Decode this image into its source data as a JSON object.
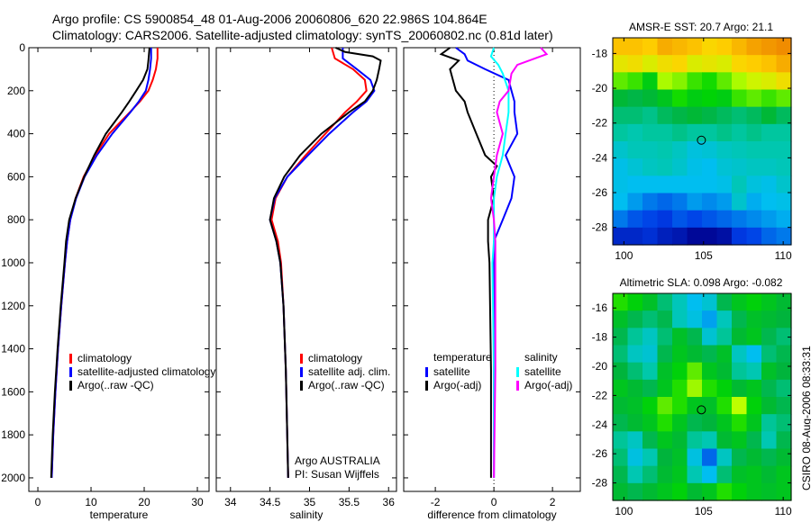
{
  "title_line1": "Argo profile: CS 5900854_48 01-Aug-2006 20060806_620 22.986S 104.864E",
  "title_line2": "Climatology: CARS2006. Satellite-adjusted climatology: synTS_20060802.nc (0.81d later)",
  "side_stamp": "CSIRO 08-Aug-2006 08:33:31",
  "chart_data": [
    {
      "type": "line",
      "id": "temperature",
      "xlabel": "temperature",
      "ylabel": "",
      "xlim": [
        -1.7,
        32.2
      ],
      "ylim": [
        2063,
        0
      ],
      "xticks": [
        "0",
        "10",
        "20",
        "30"
      ],
      "xtick_values": [
        0,
        10,
        20,
        30
      ],
      "yticks": [
        "0",
        "200",
        "400",
        "600",
        "800",
        "1000",
        "1200",
        "1400",
        "1600",
        "1800",
        "2000"
      ],
      "ytick_values": [
        0,
        200,
        400,
        600,
        800,
        1000,
        1200,
        1400,
        1600,
        1800,
        2000
      ],
      "legend": [
        "climatology",
        "satellite-adjusted climatology",
        "Argo(..raw -QC)"
      ],
      "series": [
        {
          "name": "climatology",
          "color": "#ff0000",
          "depth": [
            0,
            50,
            100,
            150,
            200,
            250,
            300,
            400,
            500,
            600,
            700,
            800,
            900,
            1000,
            1200,
            1400,
            1600,
            1800,
            2000
          ],
          "values": [
            22.5,
            22.5,
            22.2,
            21.6,
            20.8,
            19.2,
            17.3,
            13.4,
            10.8,
            8.6,
            7.1,
            6.1,
            5.5,
            5.1,
            4.4,
            3.8,
            3.3,
            2.9,
            2.6
          ]
        },
        {
          "name": "satellite-adjusted climatology",
          "color": "#0000ff",
          "depth": [
            0,
            50,
            100,
            150,
            200,
            250,
            300,
            400,
            500,
            600,
            700,
            800,
            900,
            1000,
            1200,
            1400,
            1600,
            1800,
            2000
          ],
          "values": [
            21.3,
            21.3,
            21.1,
            20.8,
            20.3,
            19.0,
            17.4,
            14.0,
            11.1,
            8.8,
            7.2,
            6.1,
            5.5,
            5.1,
            4.4,
            3.8,
            3.3,
            2.9,
            2.6
          ]
        },
        {
          "name": "Argo(..raw -QC)",
          "color": "#000000",
          "depth": [
            0,
            30,
            60,
            100,
            150,
            200,
            250,
            300,
            350,
            400,
            500,
            600,
            700,
            800,
            900,
            1000,
            1200,
            1400,
            1600,
            1800,
            2000
          ],
          "values": [
            21.0,
            20.9,
            20.8,
            20.6,
            19.8,
            18.5,
            17.2,
            15.8,
            14.3,
            12.8,
            10.6,
            8.7,
            7.1,
            5.9,
            5.3,
            5.0,
            4.3,
            3.7,
            3.2,
            2.8,
            2.5
          ]
        }
      ]
    },
    {
      "type": "line",
      "id": "salinity",
      "xlabel": "salinity",
      "xlim": [
        33.82,
        36.1
      ],
      "ylim": [
        2063,
        0
      ],
      "xticks": [
        "34",
        "34.5",
        "35",
        "35.5",
        "36"
      ],
      "xtick_values": [
        34,
        34.5,
        35,
        35.5,
        36
      ],
      "legend": [
        "climatology",
        "satellite adj. clim.",
        "Argo(..raw -QC)"
      ],
      "annotation": [
        "Argo AUSTRALIA",
        "PI: Susan Wijffels"
      ],
      "series": [
        {
          "name": "climatology",
          "color": "#ff0000",
          "depth": [
            0,
            50,
            100,
            150,
            200,
            250,
            300,
            400,
            500,
            600,
            700,
            800,
            900,
            1000,
            1200,
            1500,
            2000
          ],
          "values": [
            35.28,
            35.32,
            35.55,
            35.7,
            35.72,
            35.6,
            35.45,
            35.2,
            34.95,
            34.72,
            34.57,
            34.52,
            34.6,
            34.64,
            34.67,
            34.7,
            34.73
          ]
        },
        {
          "name": "satellite adj. clim.",
          "color": "#0000ff",
          "depth": [
            0,
            50,
            100,
            150,
            200,
            250,
            300,
            400,
            500,
            600,
            700,
            800,
            900,
            1000,
            1200,
            1500,
            2000
          ],
          "values": [
            35.42,
            35.42,
            35.6,
            35.77,
            35.82,
            35.72,
            35.55,
            35.25,
            34.98,
            34.72,
            34.56,
            34.5,
            34.58,
            34.63,
            34.67,
            34.7,
            34.73
          ]
        },
        {
          "name": "Argo(..raw -QC)",
          "color": "#000000",
          "depth": [
            0,
            20,
            40,
            60,
            100,
            150,
            200,
            250,
            300,
            400,
            500,
            600,
            700,
            800,
            900,
            1000,
            1200,
            1500,
            2000
          ],
          "values": [
            35.33,
            35.45,
            35.8,
            35.9,
            35.88,
            35.85,
            35.8,
            35.7,
            35.5,
            35.15,
            34.88,
            34.68,
            34.55,
            34.5,
            34.58,
            34.63,
            34.67,
            34.7,
            34.73
          ]
        }
      ]
    },
    {
      "type": "line",
      "id": "difference",
      "xlabel": "difference from climatology",
      "xlim": [
        -3.08,
        2.95
      ],
      "ylim": [
        2063,
        0
      ],
      "xticks": [
        "-2",
        "0",
        "2"
      ],
      "xtick_values": [
        -2,
        0,
        2
      ],
      "legend_headers": [
        "temperature",
        "salinity"
      ],
      "legend": [
        "satellite",
        "Argo(-adj)",
        "satellite",
        "Argo(-adj)"
      ],
      "series": [
        {
          "name": "temperature satellite",
          "color": "#0000ff",
          "depth": [
            0,
            30,
            60,
            100,
            150,
            200,
            250,
            300,
            400,
            500,
            600,
            700,
            800,
            900,
            1000,
            1500,
            2000
          ],
          "values": [
            -1.3,
            -1.0,
            -0.9,
            -0.3,
            0.5,
            0.6,
            0.7,
            0.7,
            0.8,
            0.4,
            0.7,
            0.6,
            0.3,
            0,
            0,
            0,
            0
          ]
        },
        {
          "name": "temperature Argo(-adj)",
          "color": "#000000",
          "depth": [
            0,
            30,
            60,
            100,
            150,
            200,
            250,
            300,
            400,
            500,
            550,
            600,
            700,
            800,
            900,
            1000,
            1500,
            2000
          ],
          "values": [
            -1.5,
            -1.8,
            -1.2,
            -1.5,
            -1.4,
            -1.3,
            -1.0,
            -0.9,
            -0.6,
            -0.3,
            0.1,
            -0.1,
            0.0,
            -0.2,
            -0.2,
            -0.15,
            -0.1,
            -0.1
          ]
        },
        {
          "name": "salinity satellite",
          "color": "#00ffff",
          "depth": [
            0,
            40,
            80,
            120,
            200,
            300,
            400,
            500,
            600,
            700,
            800,
            900,
            1000,
            1500,
            2000
          ],
          "values": [
            0,
            -0.1,
            0.15,
            0.3,
            0.5,
            0.5,
            0.4,
            0.3,
            0.1,
            0,
            0,
            0,
            -0.05,
            0,
            0
          ]
        },
        {
          "name": "salinity Argo(-adj)",
          "color": "#ff00ff",
          "depth": [
            0,
            30,
            50,
            80,
            120,
            200,
            250,
            300,
            400,
            500,
            600,
            700,
            800,
            900,
            1000,
            1500,
            2000
          ],
          "values": [
            1.6,
            1.8,
            1.4,
            0.8,
            0.6,
            0.5,
            0.2,
            0.1,
            0.3,
            0.1,
            0,
            -0.1,
            0,
            0.05,
            0.05,
            0.05,
            0
          ]
        }
      ]
    },
    {
      "type": "heatmap",
      "id": "sst-map",
      "title": "AMSR-E SST: 20.7 Argo: 21.1",
      "xlim": [
        99.3,
        110.5
      ],
      "ylim": [
        -29.0,
        -17.1
      ],
      "xticks": [
        "100",
        "105",
        "110"
      ],
      "xtick_values": [
        100,
        105,
        110
      ],
      "yticks": [
        "-18",
        "-20",
        "-22",
        "-24",
        "-26",
        "-28"
      ],
      "ytick_values": [
        -18,
        -20,
        -22,
        -24,
        -26,
        -28
      ],
      "marker": {
        "lon": 104.864,
        "lat": -22.986
      },
      "color_range": [
        18.5,
        23.5
      ],
      "grid": [
        [
          23.0,
          23.0,
          22.9,
          23.2,
          23.1,
          23.0,
          22.8,
          22.9,
          23.1,
          23.3,
          23.4,
          23.5
        ],
        [
          22.6,
          22.7,
          22.5,
          22.7,
          22.8,
          22.5,
          22.6,
          22.5,
          22.8,
          22.9,
          23.0,
          23.2
        ],
        [
          22.0,
          21.9,
          21.6,
          22.2,
          22.1,
          21.9,
          21.8,
          22.0,
          22.2,
          22.4,
          22.5,
          22.7
        ],
        [
          21.3,
          21.2,
          21.3,
          21.5,
          21.8,
          21.6,
          21.7,
          21.6,
          21.9,
          22.0,
          21.9,
          22.0
        ],
        [
          21.0,
          21.0,
          20.9,
          21.1,
          21.2,
          21.3,
          21.2,
          21.1,
          21.0,
          21.1,
          21.3,
          21.1
        ],
        [
          20.8,
          20.7,
          20.8,
          20.8,
          20.9,
          20.8,
          20.8,
          20.9,
          20.8,
          20.9,
          20.8,
          20.8
        ],
        [
          20.4,
          20.6,
          20.6,
          20.7,
          20.5,
          20.2,
          20.3,
          20.5,
          20.6,
          20.7,
          20.7,
          20.7
        ],
        [
          20.1,
          20.3,
          20.5,
          20.6,
          20.4,
          20.1,
          20.0,
          20.3,
          20.4,
          20.5,
          20.5,
          20.6
        ],
        [
          20.1,
          20.0,
          20.0,
          20.0,
          20.0,
          20.0,
          20.0,
          20.1,
          20.6,
          20.2,
          20.1,
          20.4
        ],
        [
          20.0,
          19.8,
          19.6,
          19.5,
          19.6,
          19.8,
          19.7,
          19.8,
          20.4,
          19.9,
          20.0,
          20.1
        ],
        [
          19.6,
          19.4,
          19.3,
          19.2,
          19.4,
          19.3,
          19.4,
          19.5,
          19.6,
          19.7,
          19.8,
          19.9
        ],
        [
          19.0,
          19.0,
          19.1,
          18.9,
          18.8,
          18.6,
          18.6,
          18.7,
          19.2,
          19.3,
          19.5,
          19.6
        ]
      ]
    },
    {
      "type": "heatmap",
      "id": "sla-map",
      "title": "Altimetric SLA: 0.098 Argo: -0.082",
      "xlim": [
        99.3,
        110.5
      ],
      "ylim": [
        -29.2,
        -15.0
      ],
      "xticks": [
        "100",
        "105",
        "110"
      ],
      "xtick_values": [
        100,
        105,
        110
      ],
      "yticks": [
        "-16",
        "-18",
        "-20",
        "-22",
        "-24",
        "-26",
        "-28"
      ],
      "ytick_values": [
        -16,
        -18,
        -20,
        -22,
        -24,
        -26,
        -28
      ],
      "marker": {
        "lon": 104.864,
        "lat": -22.986
      },
      "color_range": [
        -0.3,
        0.3
      ],
      "grid": [
        [
          0.1,
          0.08,
          0.05,
          0.0,
          -0.05,
          -0.12,
          -0.08,
          0.02,
          0.06,
          0.08,
          0.06,
          0.04
        ],
        [
          0.05,
          0.02,
          0.0,
          0.02,
          -0.05,
          -0.1,
          -0.14,
          -0.05,
          0.02,
          0.05,
          0.04,
          0.03
        ],
        [
          0.02,
          -0.02,
          -0.06,
          0.0,
          0.05,
          0.02,
          -0.08,
          -0.02,
          0.04,
          0.06,
          0.02,
          0.0
        ],
        [
          0.0,
          -0.06,
          -0.08,
          0.02,
          0.06,
          0.04,
          0.02,
          0.05,
          -0.06,
          -0.12,
          0.0,
          0.02
        ],
        [
          0.03,
          0.0,
          -0.03,
          0.05,
          0.08,
          0.12,
          0.06,
          0.04,
          -0.02,
          -0.04,
          0.05,
          0.03
        ],
        [
          0.06,
          0.04,
          0.02,
          0.06,
          0.1,
          0.14,
          0.1,
          0.08,
          0.04,
          0.06,
          0.02,
          0.0
        ],
        [
          0.04,
          0.05,
          0.08,
          0.12,
          0.1,
          0.06,
          0.05,
          0.1,
          0.15,
          0.08,
          0.04,
          0.02
        ],
        [
          0.02,
          0.04,
          0.06,
          0.1,
          0.06,
          0.02,
          0.03,
          0.06,
          0.1,
          0.06,
          -0.02,
          0.0
        ],
        [
          -0.02,
          -0.06,
          0.02,
          0.06,
          0.04,
          -0.02,
          -0.04,
          0.04,
          0.06,
          0.02,
          -0.04,
          0.02
        ],
        [
          0.0,
          -0.1,
          -0.04,
          0.03,
          0.05,
          -0.1,
          -0.18,
          -0.06,
          0.02,
          0.04,
          0.02,
          0.04
        ],
        [
          0.02,
          -0.04,
          0.0,
          0.04,
          0.06,
          -0.04,
          -0.12,
          0.0,
          0.05,
          0.06,
          0.04,
          0.06
        ],
        [
          0.04,
          0.02,
          0.04,
          0.06,
          0.08,
          0.04,
          0.06,
          0.1,
          0.08,
          0.06,
          0.05,
          0.06
        ]
      ]
    }
  ]
}
